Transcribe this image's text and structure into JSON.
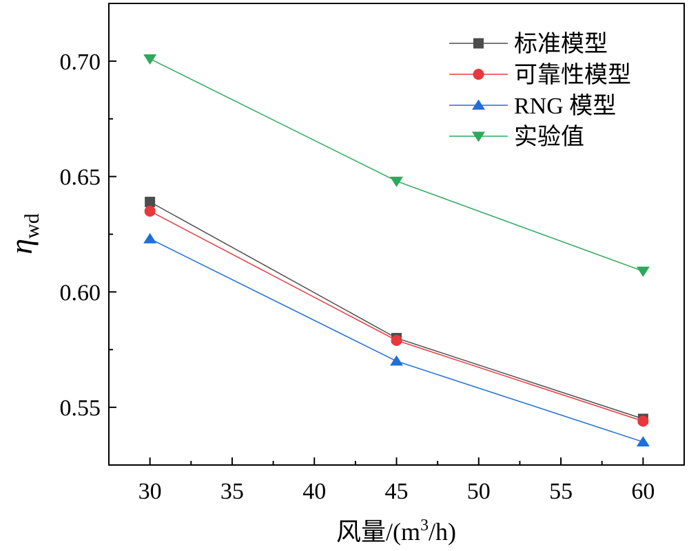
{
  "chart_data": {
    "type": "line",
    "x": [
      30,
      45,
      60
    ],
    "xticks": [
      30,
      35,
      40,
      45,
      50,
      55,
      60
    ],
    "yticks": [
      0.55,
      0.6,
      0.65,
      0.7
    ],
    "ytick_labels": [
      "0.55",
      "0.60",
      "0.65",
      "0.70"
    ],
    "xlim": [
      27.5,
      62.5
    ],
    "ylim": [
      0.525,
      0.725
    ],
    "xlabel": {
      "prefix": "风量/(m",
      "sup": "3",
      "suffix": "/h)"
    },
    "ylabel": {
      "symbol": "η",
      "sub": "wd"
    },
    "legend_position": "top-right",
    "grid": false,
    "series": [
      {
        "name": "标准模型",
        "values": [
          0.639,
          0.58,
          0.545
        ],
        "color": "#4d4d4d",
        "marker": "square"
      },
      {
        "name": "可靠性模型",
        "values": [
          0.635,
          0.579,
          0.544
        ],
        "color": "#e8383d",
        "marker": "circle"
      },
      {
        "name": "RNG 模型",
        "values": [
          0.623,
          0.57,
          0.535
        ],
        "color": "#1e6fd9",
        "marker": "triangle-up"
      },
      {
        "name": "实验值",
        "values": [
          0.701,
          0.648,
          0.609
        ],
        "color": "#2ea85a",
        "marker": "triangle-down"
      }
    ]
  }
}
